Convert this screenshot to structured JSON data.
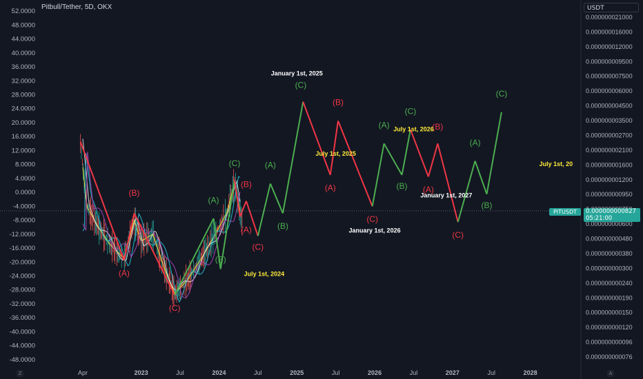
{
  "header": {
    "symbol": "Pitbull/Tether, 5D, OKX"
  },
  "right_axis": {
    "currency": "USDT",
    "ticks": [
      "0.000000021000",
      "0.000000016000",
      "0.000000012000",
      "0.000000009500",
      "0.000000007500",
      "0.000000006000",
      "0.000000004500",
      "0.000000003500",
      "0.000000002700",
      "0.000000002100",
      "0.000000001600",
      "0.000000001200",
      "0.000000000950",
      "0.000000000750",
      "0.000000000600",
      "0.000000000480",
      "0.000000000380",
      "0.000000000300",
      "0.000000000240",
      "0.000000000190",
      "0.000000000150",
      "0.000000000120",
      "0.000000000096",
      "0.000000000076"
    ]
  },
  "price_tag": {
    "pair": "PITUSDT",
    "value": "0.000000000827",
    "countdown": "05:21:00"
  },
  "corners": {
    "left": "Z",
    "right": "A"
  },
  "colors": {
    "bg": "#131722",
    "green": "#4caf50",
    "red": "#f23645",
    "yellow": "#ffeb3b",
    "white": "#ffffff",
    "price": "#26a69a"
  },
  "chart_data": {
    "type": "line",
    "title": "Pitbull/Tether, 5D, OKX",
    "y_ticks": [
      52,
      48,
      44,
      40,
      36,
      32,
      28,
      24,
      20,
      16,
      12,
      8,
      4,
      0,
      -4,
      -8,
      -12,
      -16,
      -20,
      -24,
      -28,
      -32,
      -36,
      -40,
      -44,
      -48
    ],
    "y_tick_labels": [
      "52.0000",
      "48.0000",
      "44.0000",
      "40.0000",
      "36.0000",
      "32.0000",
      "28.0000",
      "24.0000",
      "20.0000",
      "16.0000",
      "12.0000",
      "8.0000",
      "4.0000",
      "0.0000",
      "-4.0000",
      "-8.0000",
      "-12.0000",
      "-16.0000",
      "-20.0000",
      "-24.0000",
      "-28.0000",
      "-32.0000",
      "-36.0000",
      "-40.0000",
      "-44.0000",
      "-48.0000"
    ],
    "ylim": [
      -50,
      54
    ],
    "x_ticks": [
      {
        "label": "Apr",
        "x": 2022.25
      },
      {
        "label": "2023",
        "x": 2023.0
      },
      {
        "label": "Jul",
        "x": 2023.5
      },
      {
        "label": "2024",
        "x": 2024.0
      },
      {
        "label": "Jul",
        "x": 2024.5
      },
      {
        "label": "2025",
        "x": 2025.0
      },
      {
        "label": "Jul",
        "x": 2025.5
      },
      {
        "label": "2026",
        "x": 2026.0
      },
      {
        "label": "Jul",
        "x": 2026.5
      },
      {
        "label": "2027",
        "x": 2027.0
      },
      {
        "label": "Jul",
        "x": 2027.5
      },
      {
        "label": "2028",
        "x": 2028.0
      }
    ],
    "xlim": [
      2021.7,
      2028.65
    ],
    "current_price_y": -5.5,
    "wave_path": [
      {
        "x": 2022.22,
        "y": 14.5,
        "c": "red"
      },
      {
        "x": 2022.78,
        "y": -19.5,
        "c": "red"
      },
      {
        "x": 2022.91,
        "y": -6.0,
        "c": "red"
      },
      {
        "x": 2023.43,
        "y": -29.5,
        "c": "red"
      },
      {
        "x": 2023.93,
        "y": -7.5,
        "c": "green"
      },
      {
        "x": 2024.02,
        "y": -22.0,
        "c": "green"
      },
      {
        "x": 2024.2,
        "y": 3.5,
        "c": "green"
      },
      {
        "x": 2024.27,
        "y": -7.0,
        "c": "red"
      },
      {
        "x": 2024.35,
        "y": -2.5,
        "c": "red"
      },
      {
        "x": 2024.5,
        "y": -12.5,
        "c": "red"
      },
      {
        "x": 2024.66,
        "y": 2.5,
        "c": "green"
      },
      {
        "x": 2024.82,
        "y": -6.0,
        "c": "green"
      },
      {
        "x": 2025.08,
        "y": 26.0,
        "c": "green"
      },
      {
        "x": 2025.43,
        "y": 5.0,
        "c": "red"
      },
      {
        "x": 2025.53,
        "y": 20.5,
        "c": "red"
      },
      {
        "x": 2025.97,
        "y": -4.0,
        "c": "red"
      },
      {
        "x": 2026.12,
        "y": 14.0,
        "c": "green"
      },
      {
        "x": 2026.35,
        "y": 5.0,
        "c": "green"
      },
      {
        "x": 2026.46,
        "y": 18.0,
        "c": "green"
      },
      {
        "x": 2026.69,
        "y": 4.5,
        "c": "red"
      },
      {
        "x": 2026.81,
        "y": 14.0,
        "c": "red"
      },
      {
        "x": 2027.07,
        "y": -8.5,
        "c": "red"
      },
      {
        "x": 2027.29,
        "y": 9.0,
        "c": "green"
      },
      {
        "x": 2027.44,
        "y": -0.5,
        "c": "green"
      },
      {
        "x": 2027.63,
        "y": 23.0,
        "c": "green"
      }
    ],
    "wave_labels": [
      {
        "text": "(B)",
        "x": 2022.91,
        "y": -1.0,
        "c": "red"
      },
      {
        "text": "(A)",
        "x": 2022.78,
        "y": -24.0,
        "c": "red"
      },
      {
        "text": "(C)",
        "x": 2023.43,
        "y": -34.0,
        "c": "red"
      },
      {
        "text": "(A)",
        "x": 2023.93,
        "y": -3.0,
        "c": "green"
      },
      {
        "text": "(B)",
        "x": 2024.02,
        "y": -20.0,
        "c": "green"
      },
      {
        "text": "(C)",
        "x": 2024.2,
        "y": 7.5,
        "c": "green"
      },
      {
        "text": "(B)",
        "x": 2024.35,
        "y": 1.5,
        "c": "red"
      },
      {
        "text": "(A)",
        "x": 2024.35,
        "y": -11.5,
        "c": "red"
      },
      {
        "text": "(C)",
        "x": 2024.5,
        "y": -16.5,
        "c": "red"
      },
      {
        "text": "(A)",
        "x": 2024.66,
        "y": 7.0,
        "c": "green"
      },
      {
        "text": "(B)",
        "x": 2024.82,
        "y": -10.5,
        "c": "green"
      },
      {
        "text": "(C)",
        "x": 2025.05,
        "y": 30.0,
        "c": "green"
      },
      {
        "text": "(A)",
        "x": 2025.43,
        "y": 0.5,
        "c": "red"
      },
      {
        "text": "(B)",
        "x": 2025.53,
        "y": 25.0,
        "c": "red"
      },
      {
        "text": "(C)",
        "x": 2025.97,
        "y": -8.5,
        "c": "red"
      },
      {
        "text": "(A)",
        "x": 2026.12,
        "y": 18.5,
        "c": "green"
      },
      {
        "text": "(B)",
        "x": 2026.35,
        "y": 1.0,
        "c": "green"
      },
      {
        "text": "(C)",
        "x": 2026.46,
        "y": 22.5,
        "c": "green"
      },
      {
        "text": "(A)",
        "x": 2026.69,
        "y": 0.0,
        "c": "red"
      },
      {
        "text": "(B)",
        "x": 2026.81,
        "y": 18.0,
        "c": "red"
      },
      {
        "text": "(C)",
        "x": 2027.07,
        "y": -13.0,
        "c": "red"
      },
      {
        "text": "(A)",
        "x": 2027.29,
        "y": 13.5,
        "c": "green"
      },
      {
        "text": "(B)",
        "x": 2027.44,
        "y": -4.5,
        "c": "green"
      },
      {
        "text": "(C)",
        "x": 2027.63,
        "y": 27.5,
        "c": "green"
      }
    ],
    "annotations": [
      {
        "text": "January 1st, 2025",
        "x": 2025.0,
        "y": 33.5,
        "c": "white"
      },
      {
        "text": "July 1st, 2025",
        "x": 2025.5,
        "y": 10.5,
        "c": "yellow"
      },
      {
        "text": "July 1st, 2026",
        "x": 2026.5,
        "y": 17.5,
        "c": "yellow"
      },
      {
        "text": "January 1st, 2026",
        "x": 2026.0,
        "y": -11.5,
        "c": "white"
      },
      {
        "text": "January 1st, 2027",
        "x": 2026.92,
        "y": -1.5,
        "c": "white"
      },
      {
        "text": "July 1st, 2024",
        "x": 2024.58,
        "y": -24.0,
        "c": "yellow"
      },
      {
        "text": "July 1st, 20",
        "x": 2028.33,
        "y": 7.5,
        "c": "yellow"
      }
    ]
  }
}
